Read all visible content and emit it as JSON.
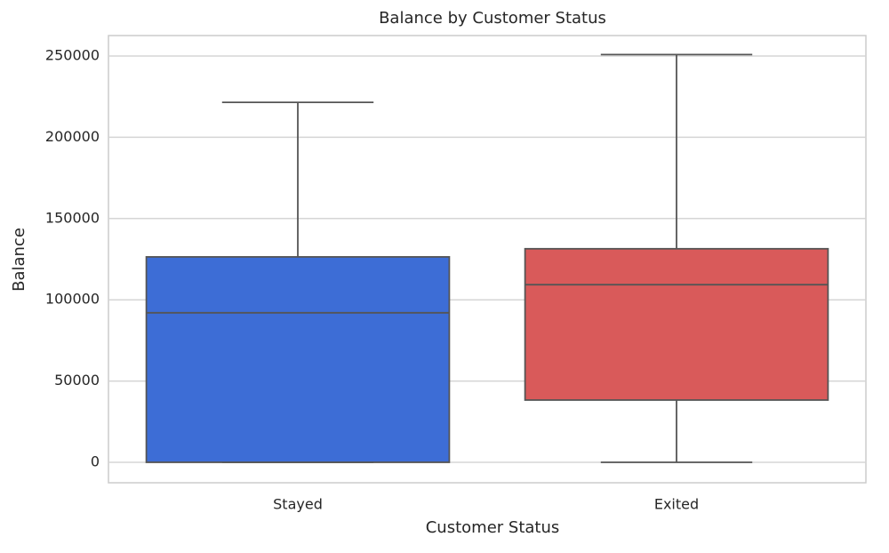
{
  "chart_data": {
    "type": "box",
    "title": "Balance by Customer Status",
    "xlabel": "Customer Status",
    "ylabel": "Balance",
    "categories": [
      "Stayed",
      "Exited"
    ],
    "boxes": [
      {
        "min": 0,
        "q1": 0,
        "median": 92000,
        "q3": 126400,
        "max": 221500
      },
      {
        "min": 0,
        "q1": 38300,
        "median": 109300,
        "q3": 131400,
        "max": 250900
      }
    ],
    "colors": [
      "#3d6dd6",
      "#d95a5a"
    ],
    "ylim": [
      -12600,
      262600
    ],
    "yticks": [
      0,
      50000,
      100000,
      150000,
      200000,
      250000
    ],
    "grid": true
  }
}
